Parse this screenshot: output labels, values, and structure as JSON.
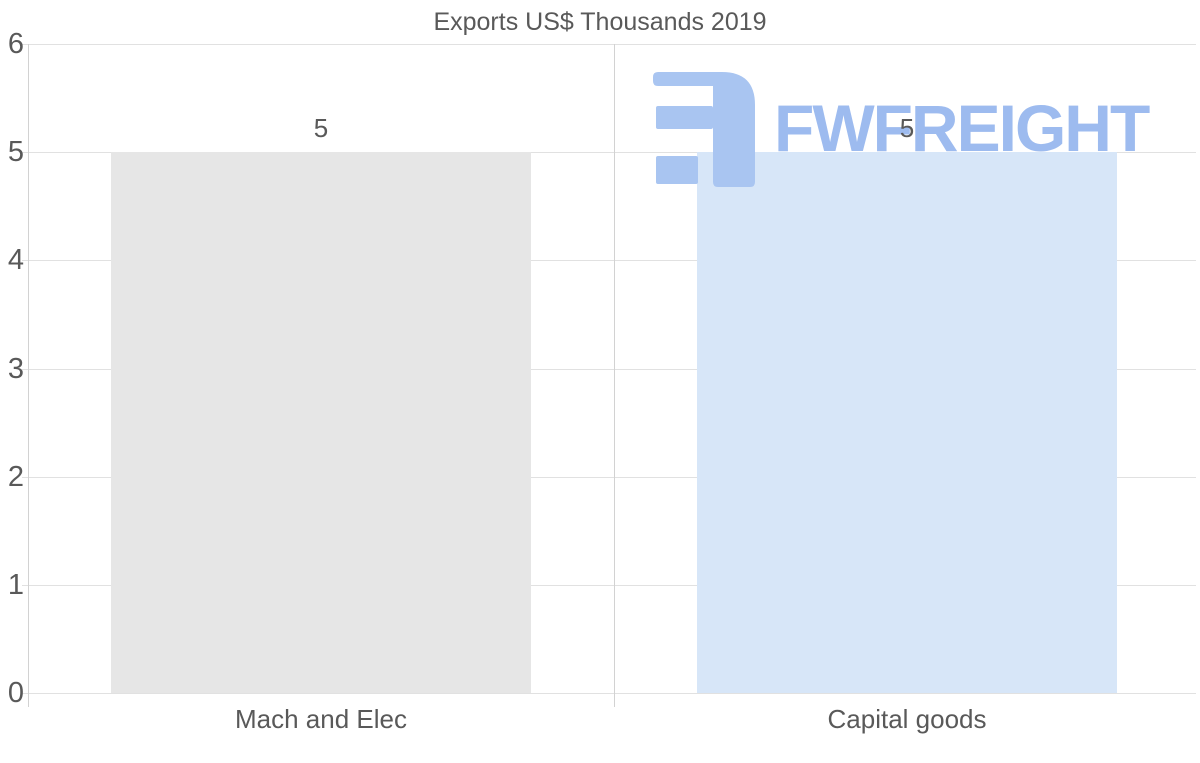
{
  "chart_data": {
    "type": "bar",
    "title": "Exports US$ Thousands 2019",
    "categories": [
      "Mach and Elec",
      "Capital goods"
    ],
    "values": [
      5,
      5
    ],
    "data_labels": [
      "5",
      "5"
    ],
    "bar_colors": [
      "#e6e6e6",
      "#d7e6f8"
    ],
    "ylim": [
      0,
      6
    ],
    "yticks": [
      6,
      5,
      4,
      3,
      2,
      1,
      0
    ],
    "xlabel": "",
    "ylabel": "",
    "grid": "on",
    "legend": "none"
  },
  "watermark": {
    "brand": "FWFREIGHT",
    "icon_color": "#a9c5f1",
    "text_color": "#9dbbef"
  },
  "colors": {
    "title": "#595959",
    "axis_labels": "#595959",
    "data_label": "#595959",
    "gridline": "#e1e1e1",
    "axis_line": "#d2d2d2",
    "background": "#ffffff"
  }
}
